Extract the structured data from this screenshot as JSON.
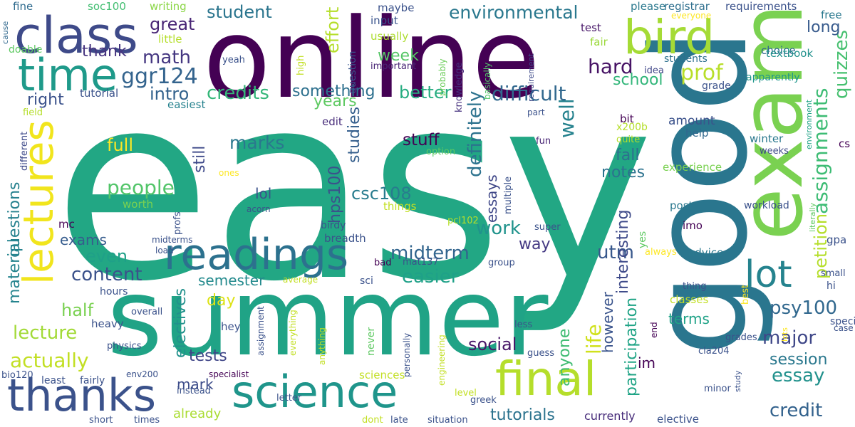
{
  "words": [
    {
      "text": "easy",
      "color": "#22a784"
    },
    {
      "text": "online",
      "color": "#440154"
    },
    {
      "text": "good",
      "color": "#2a768e"
    },
    {
      "text": "summer",
      "color": "#20a386"
    },
    {
      "text": "exam",
      "color": "#7ad151"
    },
    {
      "text": "class",
      "color": "#3e4a89"
    },
    {
      "text": "bird",
      "color": "#a5db36"
    },
    {
      "text": "time",
      "color": "#1f9a8a"
    },
    {
      "text": "lectures",
      "color": "#f1e51d"
    },
    {
      "text": "readings",
      "color": "#2c718e"
    },
    {
      "text": "lot",
      "color": "#25838e"
    },
    {
      "text": "science",
      "color": "#1f958b"
    },
    {
      "text": "thanks",
      "color": "#3b528b"
    },
    {
      "text": "final",
      "color": "#b5de2b"
    },
    {
      "text": "ggr124",
      "color": "#33638d"
    },
    {
      "text": "environmental",
      "color": "#2a788e"
    },
    {
      "text": "student",
      "color": "#2b758e"
    },
    {
      "text": "great",
      "color": "#482575"
    },
    {
      "text": "math",
      "color": "#453781"
    },
    {
      "text": "thank",
      "color": "#46337f"
    },
    {
      "text": "intro",
      "color": "#33628d"
    },
    {
      "text": "credits",
      "color": "#35b779"
    },
    {
      "text": "something",
      "color": "#2d708e"
    },
    {
      "text": "difficult",
      "color": "#31688e"
    },
    {
      "text": "hard",
      "color": "#471365"
    },
    {
      "text": "prof",
      "color": "#b8de29"
    },
    {
      "text": "school",
      "color": "#32b67a"
    },
    {
      "text": "better",
      "color": "#27ad81"
    },
    {
      "text": "week",
      "color": "#56c667"
    },
    {
      "text": "effort",
      "color": "#b5de2b"
    },
    {
      "text": "right",
      "color": "#3b528b"
    },
    {
      "text": "years",
      "color": "#5ec962"
    },
    {
      "text": "full",
      "color": "#fde725"
    },
    {
      "text": "marks",
      "color": "#2a788e"
    },
    {
      "text": "stuff",
      "color": "#440154"
    },
    {
      "text": "well",
      "color": "#26828e"
    },
    {
      "text": "definitely",
      "color": "#2c728e"
    },
    {
      "text": "assignments",
      "color": "#3dbc74"
    },
    {
      "text": "quizzes",
      "color": "#46c06f"
    },
    {
      "text": "long",
      "color": "#375a8c"
    },
    {
      "text": "people",
      "color": "#52c569"
    },
    {
      "text": "questions",
      "color": "#26818e"
    },
    {
      "text": "material",
      "color": "#25848e"
    },
    {
      "text": "still",
      "color": "#3e4989"
    },
    {
      "text": "lol",
      "color": "#3b528b"
    },
    {
      "text": "hps100",
      "color": "#3b528b"
    },
    {
      "text": "csc108",
      "color": "#287c8e"
    },
    {
      "text": "studies",
      "color": "#355f8d"
    },
    {
      "text": "essays",
      "color": "#3f4788"
    },
    {
      "text": "work",
      "color": "#20938c"
    },
    {
      "text": "notes",
      "color": "#2c728e"
    },
    {
      "text": "fall",
      "color": "#2d708e"
    },
    {
      "text": "midterm",
      "color": "#32658e"
    },
    {
      "text": "way",
      "color": "#443983"
    },
    {
      "text": "even",
      "color": "#1fa088"
    },
    {
      "text": "exams",
      "color": "#365c8d"
    },
    {
      "text": "content",
      "color": "#3b528b"
    },
    {
      "text": "utm",
      "color": "#38588c"
    },
    {
      "text": "easier",
      "color": "#1fa188"
    },
    {
      "text": "semester",
      "color": "#238a8d"
    },
    {
      "text": "however",
      "color": "#3a548c"
    },
    {
      "text": "interesting",
      "color": "#3e4a89"
    },
    {
      "text": "participation",
      "color": "#20a486"
    },
    {
      "text": "petition",
      "color": "#b5de2b"
    },
    {
      "text": "psy100",
      "color": "#31688e"
    },
    {
      "text": "half",
      "color": "#7ad151"
    },
    {
      "text": "electives",
      "color": "#21918c"
    },
    {
      "text": "lecture",
      "color": "#a2da37"
    },
    {
      "text": "actually",
      "color": "#c2df23"
    },
    {
      "text": "day",
      "color": "#dde318"
    },
    {
      "text": "terms",
      "color": "#1fa287"
    },
    {
      "text": "major",
      "color": "#3f4788"
    },
    {
      "text": "session",
      "color": "#2a788e"
    },
    {
      "text": "essay",
      "color": "#21918c"
    },
    {
      "text": "credit",
      "color": "#33628d"
    },
    {
      "text": "tests",
      "color": "#404688"
    },
    {
      "text": "mark",
      "color": "#3d4d8a"
    },
    {
      "text": "social",
      "color": "#481668"
    },
    {
      "text": "life",
      "color": "#d0e11c"
    },
    {
      "text": "anyone",
      "color": "#3fbc73"
    },
    {
      "text": "im",
      "color": "#440154"
    },
    {
      "text": "tutorials",
      "color": "#2c738e"
    },
    {
      "text": "already",
      "color": "#aadc32"
    },
    {
      "text": "currently",
      "color": "#472c7a"
    },
    {
      "text": "writing",
      "color": "#8bd646"
    },
    {
      "text": "soc100",
      "color": "#42be71"
    },
    {
      "text": "fine",
      "color": "#2f6b8e"
    },
    {
      "text": "maybe",
      "color": "#3b528b"
    },
    {
      "text": "input",
      "color": "#3a548c"
    },
    {
      "text": "usually",
      "color": "#addc30"
    },
    {
      "text": "question",
      "color": "#39558c"
    },
    {
      "text": "important",
      "color": "#482475"
    },
    {
      "text": "knowledge",
      "color": "#46307e"
    },
    {
      "text": "probably",
      "color": "#6ccd5a"
    },
    {
      "text": "test",
      "color": "#481769"
    },
    {
      "text": "fair",
      "color": "#9bd93c"
    },
    {
      "text": "please",
      "color": "#2a788e"
    },
    {
      "text": "registrar",
      "color": "#2e6f8e"
    },
    {
      "text": "requirements",
      "color": "#3b528b"
    },
    {
      "text": "everyone",
      "color": "#fde725"
    },
    {
      "text": "free",
      "color": "#2a788e"
    },
    {
      "text": "choice",
      "color": "#31688e"
    },
    {
      "text": "textbook",
      "color": "#21918c"
    },
    {
      "text": "students",
      "color": "#2d708e"
    },
    {
      "text": "idea",
      "color": "#404688"
    },
    {
      "text": "apparently",
      "color": "#1f968b"
    },
    {
      "text": "grade",
      "color": "#3b528b"
    },
    {
      "text": "basically",
      "color": "#52c569"
    },
    {
      "text": "requirement",
      "color": "#3e4a89"
    },
    {
      "text": "little",
      "color": "#b5de2b"
    },
    {
      "text": "cause",
      "color": "#31688e"
    },
    {
      "text": "doable",
      "color": "#5ec962"
    },
    {
      "text": "yeah",
      "color": "#3b528b"
    },
    {
      "text": "high",
      "color": "#c2df23"
    },
    {
      "text": "tutorial",
      "color": "#3b528b"
    },
    {
      "text": "easiest",
      "color": "#26828e"
    },
    {
      "text": "field",
      "color": "#b5de2b"
    },
    {
      "text": "different",
      "color": "#3e4a89"
    },
    {
      "text": "ones",
      "color": "#fde725"
    },
    {
      "text": "worth",
      "color": "#7ad151"
    },
    {
      "text": "mc",
      "color": "#440154"
    },
    {
      "text": "acorn",
      "color": "#3b528b"
    },
    {
      "text": "things",
      "color": "#c2df23"
    },
    {
      "text": "edit",
      "color": "#472c7a"
    },
    {
      "text": "option",
      "color": "#5ec962"
    },
    {
      "text": "part",
      "color": "#3b528b"
    },
    {
      "text": "x200b",
      "color": "#b5de2b"
    },
    {
      "text": "quite",
      "color": "#b5de2b"
    },
    {
      "text": "fun",
      "color": "#482475"
    },
    {
      "text": "multiple",
      "color": "#3b528b"
    },
    {
      "text": "bit",
      "color": "#440154"
    },
    {
      "text": "amount",
      "color": "#3b528b"
    },
    {
      "text": "help",
      "color": "#31688e"
    },
    {
      "text": "winter",
      "color": "#2a788e"
    },
    {
      "text": "weeks",
      "color": "#3e4a89"
    },
    {
      "text": "environment",
      "color": "#20a386"
    },
    {
      "text": "cs",
      "color": "#440154"
    },
    {
      "text": "experience",
      "color": "#7ad151"
    },
    {
      "text": "post",
      "color": "#2a788e"
    },
    {
      "text": "imo",
      "color": "#440154"
    },
    {
      "text": "workload",
      "color": "#3b528b"
    },
    {
      "text": "literally",
      "color": "#5ec962"
    },
    {
      "text": "gpa",
      "color": "#3b528b"
    },
    {
      "text": "small",
      "color": "#3b528b"
    },
    {
      "text": "hi",
      "color": "#3b528b"
    },
    {
      "text": "advice",
      "color": "#2a788e"
    },
    {
      "text": "always",
      "color": "#fde725"
    },
    {
      "text": "yes",
      "color": "#5ec962"
    },
    {
      "text": "super",
      "color": "#3b528b"
    },
    {
      "text": "pcl102",
      "color": "#b5de2b"
    },
    {
      "text": "thing",
      "color": "#3b528b"
    },
    {
      "text": "classes",
      "color": "#c2df23"
    },
    {
      "text": "best",
      "color": "#fde725"
    },
    {
      "text": "specific",
      "color": "#3b528b"
    },
    {
      "text": "case",
      "color": "#3b528b"
    },
    {
      "text": "end",
      "color": "#440154"
    },
    {
      "text": "grades",
      "color": "#3b528b"
    },
    {
      "text": "lots",
      "color": "#fde725"
    },
    {
      "text": "cla204",
      "color": "#3b528b"
    },
    {
      "text": "guess",
      "color": "#3b528b"
    },
    {
      "text": "less",
      "color": "#3b528b"
    },
    {
      "text": "group",
      "color": "#3b528b"
    },
    {
      "text": "mat137",
      "color": "#3b528b"
    },
    {
      "text": "bad",
      "color": "#440154"
    },
    {
      "text": "sci",
      "color": "#3b528b"
    },
    {
      "text": "average",
      "color": "#c2df23"
    },
    {
      "text": "assignment",
      "color": "#3b528b"
    },
    {
      "text": "everything",
      "color": "#c2df23"
    },
    {
      "text": "anything",
      "color": "#c2df23"
    },
    {
      "text": "never",
      "color": "#5ec962"
    },
    {
      "text": "personally",
      "color": "#3b528b"
    },
    {
      "text": "engineering",
      "color": "#c2df23"
    },
    {
      "text": "specialist",
      "color": "#440154"
    },
    {
      "text": "sciences",
      "color": "#c2df23"
    },
    {
      "text": "level",
      "color": "#c2df23"
    },
    {
      "text": "greek",
      "color": "#3b528b"
    },
    {
      "text": "study",
      "color": "#3b528b"
    },
    {
      "text": "minor",
      "color": "#3b528b"
    },
    {
      "text": "elective",
      "color": "#3b528b"
    },
    {
      "text": "situation",
      "color": "#3b528b"
    },
    {
      "text": "late",
      "color": "#3b528b"
    },
    {
      "text": "dont",
      "color": "#c2df23"
    },
    {
      "text": "letter",
      "color": "#3b528b"
    },
    {
      "text": "instead",
      "color": "#3b528b"
    },
    {
      "text": "times",
      "color": "#3b528b"
    },
    {
      "text": "short",
      "color": "#3b528b"
    },
    {
      "text": "least",
      "color": "#3b528b"
    },
    {
      "text": "fairly",
      "color": "#3b528b"
    },
    {
      "text": "env200",
      "color": "#3b528b"
    },
    {
      "text": "bio120",
      "color": "#3b528b"
    },
    {
      "text": "physics",
      "color": "#3b528b"
    },
    {
      "text": "heavy",
      "color": "#3b528b"
    },
    {
      "text": "overall",
      "color": "#3b528b"
    },
    {
      "text": "hours",
      "color": "#3b528b"
    },
    {
      "text": "hey",
      "color": "#3b528b"
    },
    {
      "text": "midterms",
      "color": "#3b528b"
    },
    {
      "text": "load",
      "color": "#3b528b"
    },
    {
      "text": "profs",
      "color": "#3b528b"
    },
    {
      "text": "birdy",
      "color": "#3b528b"
    },
    {
      "text": "breadth",
      "color": "#3b528b"
    }
  ]
}
